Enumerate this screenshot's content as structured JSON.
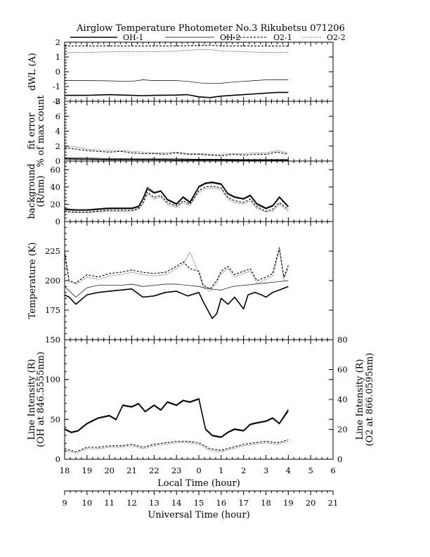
{
  "title": "Airglow Temperature Photometer No.3  Rikubetsu   071206",
  "legend": [
    {
      "name": "OH-1",
      "style": "thick"
    },
    {
      "name": "OH-2",
      "style": "thin"
    },
    {
      "name": "O2-1",
      "style": "dash"
    },
    {
      "name": "O2-2",
      "style": "dot"
    }
  ],
  "axes": {
    "local_time_label": "Local Time (hour)",
    "local_time_ticks": [
      "18",
      "19",
      "20",
      "21",
      "22",
      "23",
      "0",
      "1",
      "2",
      "3",
      "4",
      "5",
      "6"
    ],
    "universal_time_label": "Universal Time (hour)",
    "universal_time_ticks": [
      "9",
      "10",
      "11",
      "12",
      "13",
      "14",
      "15",
      "16",
      "17",
      "18",
      "19",
      "20",
      "21"
    ]
  },
  "chart_data": [
    {
      "type": "line",
      "panel": "dWL",
      "ylabel": "dWL (A)",
      "ylim": [
        -2,
        2
      ],
      "yticks": [
        -2,
        -1,
        0,
        1,
        2
      ],
      "series": [
        {
          "name": "OH-1",
          "x": [
            18,
            19,
            20,
            21,
            21.5,
            22,
            23,
            23.5,
            0,
            0.5,
            1,
            1.5,
            2,
            2.5,
            3,
            3.5,
            4
          ],
          "y": [
            -1.6,
            -1.6,
            -1.55,
            -1.6,
            -1.62,
            -1.6,
            -1.58,
            -1.55,
            -1.7,
            -1.75,
            -1.65,
            -1.6,
            -1.55,
            -1.5,
            -1.45,
            -1.4,
            -1.4
          ]
        },
        {
          "name": "OH-2",
          "x": [
            18,
            19,
            20,
            21,
            21.5,
            22,
            23,
            23.5,
            0,
            0.5,
            1,
            1.5,
            2,
            2.5,
            3,
            3.5,
            4
          ],
          "y": [
            -0.6,
            -0.6,
            -0.62,
            -0.65,
            -0.55,
            -0.6,
            -0.6,
            -0.65,
            -0.75,
            -0.8,
            -0.78,
            -0.7,
            -0.65,
            -0.6,
            -0.55,
            -0.55,
            -0.55
          ]
        },
        {
          "name": "O2-1",
          "x": [
            18,
            19,
            20,
            21,
            22,
            23,
            0,
            0.5,
            1,
            2,
            3,
            4
          ],
          "y": [
            1.75,
            1.75,
            1.75,
            1.75,
            1.75,
            1.75,
            1.78,
            1.8,
            1.75,
            1.75,
            1.75,
            1.75
          ]
        },
        {
          "name": "O2-2",
          "x": [
            18,
            19,
            20,
            21,
            22,
            23,
            0,
            0.5,
            1,
            2,
            3,
            4
          ],
          "y": [
            1.3,
            1.3,
            1.35,
            1.35,
            1.35,
            1.4,
            1.5,
            1.5,
            1.4,
            1.35,
            1.3,
            1.3
          ]
        }
      ]
    },
    {
      "type": "line",
      "panel": "fit error",
      "ylabel": "fit error",
      "ylabel2": "% of max count",
      "ylim": [
        0,
        8
      ],
      "yticks": [
        0,
        2,
        4,
        6,
        8
      ],
      "series": [
        {
          "name": "OH-1",
          "x": [
            18,
            19,
            20,
            21,
            22,
            23,
            0,
            1,
            2,
            3,
            4
          ],
          "y": [
            0.3,
            0.25,
            0.2,
            0.2,
            0.2,
            0.15,
            0.15,
            0.15,
            0.1,
            0.1,
            0.1
          ]
        },
        {
          "name": "OH-2",
          "x": [
            18,
            19,
            20,
            21,
            22,
            23,
            0,
            1,
            2,
            3,
            4
          ],
          "y": [
            0.45,
            0.4,
            0.35,
            0.3,
            0.3,
            0.3,
            0.25,
            0.25,
            0.2,
            0.2,
            0.2
          ]
        },
        {
          "name": "O2-1",
          "x": [
            18,
            18.5,
            19,
            19.5,
            20,
            20.5,
            21,
            21.5,
            22,
            22.5,
            23,
            23.5,
            0,
            0.5,
            1,
            1.5,
            2,
            2.5,
            3,
            3.5,
            4
          ],
          "y": [
            1.8,
            1.6,
            1.4,
            1.3,
            1.2,
            1.3,
            1.1,
            1.0,
            1.0,
            0.9,
            1.1,
            0.9,
            0.9,
            0.8,
            0.7,
            0.9,
            0.8,
            0.9,
            0.9,
            1.2,
            0.9
          ]
        },
        {
          "name": "O2-2",
          "x": [
            18,
            18.5,
            19,
            19.5,
            20,
            20.5,
            21,
            21.5,
            22,
            22.5,
            23,
            23.5,
            0,
            0.5,
            1,
            1.5,
            2,
            2.5,
            3,
            3.5,
            4
          ],
          "y": [
            2.0,
            1.9,
            1.6,
            1.5,
            1.4,
            1.4,
            1.3,
            1.2,
            1.1,
            1.1,
            1.2,
            1.0,
            1.0,
            0.9,
            0.9,
            1.0,
            1.0,
            1.1,
            1.1,
            1.4,
            1.1
          ]
        }
      ]
    },
    {
      "type": "line",
      "panel": "background",
      "ylabel": "background",
      "ylabel2": "(R/nm)",
      "ylim": [
        0,
        70
      ],
      "yticks": [
        0,
        20,
        40,
        60
      ],
      "series": [
        {
          "name": "OH-1",
          "x": [
            18,
            18.5,
            19,
            19.5,
            20,
            20.5,
            21,
            21.3,
            21.5,
            21.7,
            22,
            22.3,
            22.6,
            23,
            23.3,
            23.6,
            0,
            0.3,
            0.6,
            1,
            1.3,
            1.6,
            2,
            2.3,
            2.6,
            3,
            3.3,
            3.6,
            4
          ],
          "y": [
            14,
            13,
            13,
            14,
            15,
            15,
            15,
            17,
            26,
            38,
            33,
            35,
            25,
            20,
            28,
            22,
            40,
            44,
            45,
            43,
            32,
            28,
            26,
            30,
            20,
            15,
            18,
            28,
            17
          ]
        },
        {
          "name": "OH-2",
          "x": [
            18,
            18.5,
            19,
            19.5,
            20,
            20.5,
            21,
            21.3,
            21.5,
            21.7,
            22,
            22.3,
            22.6,
            23,
            23.3,
            23.6,
            0,
            0.3,
            0.6,
            1,
            1.3,
            1.6,
            2,
            2.3,
            2.6,
            3,
            3.3,
            3.6,
            4
          ],
          "y": [
            15,
            14,
            14,
            15,
            16,
            16,
            16,
            18,
            27,
            40,
            34,
            36,
            26,
            21,
            29,
            23,
            41,
            45,
            46,
            44,
            33,
            29,
            27,
            31,
            21,
            16,
            19,
            29,
            18
          ]
        },
        {
          "name": "O2-1",
          "x": [
            18,
            18.5,
            19,
            19.5,
            20,
            20.5,
            21,
            21.3,
            21.5,
            21.7,
            22,
            22.3,
            22.6,
            23,
            23.3,
            23.6,
            0,
            0.3,
            0.6,
            1,
            1.3,
            1.6,
            2,
            2.3,
            2.6,
            3,
            3.3,
            3.6,
            4
          ],
          "y": [
            12,
            11,
            11,
            12,
            13,
            13,
            13,
            15,
            22,
            34,
            28,
            30,
            22,
            18,
            24,
            20,
            36,
            40,
            41,
            39,
            28,
            24,
            22,
            26,
            17,
            12,
            14,
            22,
            14
          ]
        },
        {
          "name": "O2-2",
          "x": [
            18,
            18.5,
            19,
            19.5,
            20,
            20.5,
            21,
            21.3,
            21.5,
            21.7,
            22,
            22.3,
            22.6,
            23,
            23.3,
            23.6,
            0,
            0.3,
            0.6,
            1,
            1.3,
            1.6,
            2,
            2.3,
            2.6,
            3,
            3.3,
            3.6,
            4
          ],
          "y": [
            11,
            10,
            10,
            11,
            12,
            12,
            12,
            14,
            20,
            32,
            26,
            28,
            20,
            16,
            22,
            18,
            34,
            38,
            39,
            37,
            26,
            22,
            20,
            24,
            15,
            11,
            12,
            20,
            12
          ]
        }
      ]
    },
    {
      "type": "line",
      "panel": "temperature",
      "ylabel": "Temperature (K)",
      "ylim": [
        150,
        250
      ],
      "yticks": [
        175,
        200,
        225
      ],
      "series": [
        {
          "name": "OH-1",
          "x": [
            18,
            18.2,
            18.5,
            19,
            19.5,
            20,
            20.5,
            21,
            21.5,
            22,
            22.5,
            23,
            23.5,
            0,
            0.2,
            0.4,
            0.6,
            0.8,
            1,
            1.3,
            1.6,
            2,
            2.2,
            2.5,
            2.8,
            3,
            3.3,
            3.6,
            4
          ],
          "y": [
            188,
            186,
            180,
            188,
            190,
            191,
            192,
            193,
            186,
            187,
            190,
            191,
            187,
            190,
            182,
            175,
            168,
            172,
            185,
            180,
            186,
            176,
            188,
            190,
            188,
            186,
            190,
            192,
            195
          ]
        },
        {
          "name": "OH-2",
          "x": [
            18,
            18.5,
            19,
            19.5,
            20,
            20.5,
            21,
            21.5,
            22,
            22.5,
            23,
            23.5,
            0,
            0.5,
            1,
            1.5,
            2,
            2.5,
            3,
            3.5,
            4
          ],
          "y": [
            195,
            186,
            194,
            196,
            196,
            196,
            197,
            195,
            196,
            197,
            197,
            196,
            195,
            193,
            192,
            195,
            196,
            197,
            198,
            199,
            200
          ]
        },
        {
          "name": "O2-1",
          "x": [
            18,
            18.2,
            18.5,
            19,
            19.5,
            20,
            20.5,
            21,
            21.5,
            22,
            22.5,
            23,
            23.3,
            23.6,
            0,
            0.2,
            0.5,
            0.8,
            1,
            1.3,
            1.6,
            2,
            2.3,
            2.6,
            3,
            3.3,
            3.6,
            3.8,
            4
          ],
          "y": [
            225,
            200,
            198,
            205,
            203,
            206,
            207,
            209,
            207,
            206,
            207,
            212,
            216,
            210,
            208,
            196,
            193,
            200,
            208,
            212,
            205,
            208,
            210,
            200,
            203,
            206,
            228,
            203,
            213
          ]
        },
        {
          "name": "O2-2",
          "x": [
            18,
            18.2,
            18.5,
            19,
            19.5,
            20,
            20.5,
            21,
            21.5,
            22,
            22.5,
            23,
            23.3,
            23.6,
            0,
            0.2,
            0.5,
            0.8,
            1,
            1.3,
            1.6,
            2,
            2.3,
            2.6,
            3,
            3.3,
            3.6,
            3.8,
            4
          ],
          "y": [
            220,
            199,
            197,
            203,
            201,
            204,
            205,
            207,
            205,
            204,
            205,
            210,
            214,
            224,
            206,
            194,
            191,
            198,
            206,
            210,
            203,
            206,
            208,
            198,
            201,
            204,
            226,
            201,
            211
          ]
        }
      ]
    },
    {
      "type": "line",
      "panel": "line intensity",
      "ylabel": "Line Intensity (R)",
      "ylabel2": "(OH at 846.5555nm)",
      "ylabel_right": "Line Intensity (R)",
      "ylabel_right2": "(O2 at 866.0595nm)",
      "ylim": [
        0,
        150
      ],
      "yticks": [
        0,
        50,
        100,
        150
      ],
      "ylim_right": [
        0,
        80
      ],
      "yticks_right": [
        0,
        20,
        40,
        60,
        80
      ],
      "series": [
        {
          "name": "OH-1",
          "axis": "left",
          "x": [
            18,
            18.3,
            18.6,
            19,
            19.5,
            20,
            20.3,
            20.6,
            21,
            21.3,
            21.6,
            22,
            22.3,
            22.6,
            23,
            23.3,
            23.6,
            0,
            0.3,
            0.6,
            1,
            1.3,
            1.6,
            2,
            2.3,
            2.6,
            3,
            3.3,
            3.6,
            4
          ],
          "y": [
            38,
            34,
            36,
            45,
            52,
            55,
            50,
            68,
            66,
            70,
            60,
            68,
            62,
            72,
            68,
            74,
            72,
            76,
            38,
            30,
            28,
            34,
            38,
            36,
            44,
            46,
            48,
            52,
            45,
            62
          ]
        },
        {
          "name": "OH-2",
          "axis": "left",
          "x": [
            18,
            18.3,
            18.6,
            19,
            19.5,
            20,
            20.3,
            20.6,
            21,
            21.3,
            21.6,
            22,
            22.3,
            22.6,
            23,
            23.3,
            23.6,
            0,
            0.3,
            0.6,
            1,
            1.3,
            1.6,
            2,
            2.3,
            2.6,
            3,
            3.3,
            3.6,
            4
          ],
          "y": [
            37,
            33,
            35,
            44,
            51,
            54,
            49,
            67,
            65,
            69,
            59,
            67,
            61,
            71,
            67,
            73,
            71,
            75,
            37,
            29,
            27,
            33,
            37,
            35,
            43,
            45,
            47,
            51,
            44,
            60
          ]
        },
        {
          "name": "O2-1",
          "axis": "right",
          "x": [
            18,
            18.5,
            19,
            19.5,
            20,
            20.5,
            21,
            21.5,
            22,
            22.5,
            23,
            23.5,
            0,
            0.5,
            1,
            1.5,
            2,
            2.5,
            3,
            3.5,
            4
          ],
          "y": [
            7,
            5,
            8,
            8,
            9,
            9,
            10,
            8,
            10,
            11,
            12,
            12,
            11,
            7,
            6,
            8,
            10,
            11,
            12,
            11,
            13
          ]
        },
        {
          "name": "O2-2",
          "axis": "right",
          "x": [
            18,
            18.5,
            19,
            19.5,
            20,
            20.5,
            21,
            21.5,
            22,
            22.5,
            23,
            23.5,
            0,
            0.5,
            1,
            1.5,
            2,
            2.5,
            3,
            3.5,
            4
          ],
          "y": [
            6,
            4,
            7,
            7,
            8,
            8,
            9,
            7,
            9,
            10,
            11,
            11,
            10,
            6,
            5,
            7,
            9,
            10,
            11,
            10,
            12
          ]
        }
      ]
    }
  ]
}
